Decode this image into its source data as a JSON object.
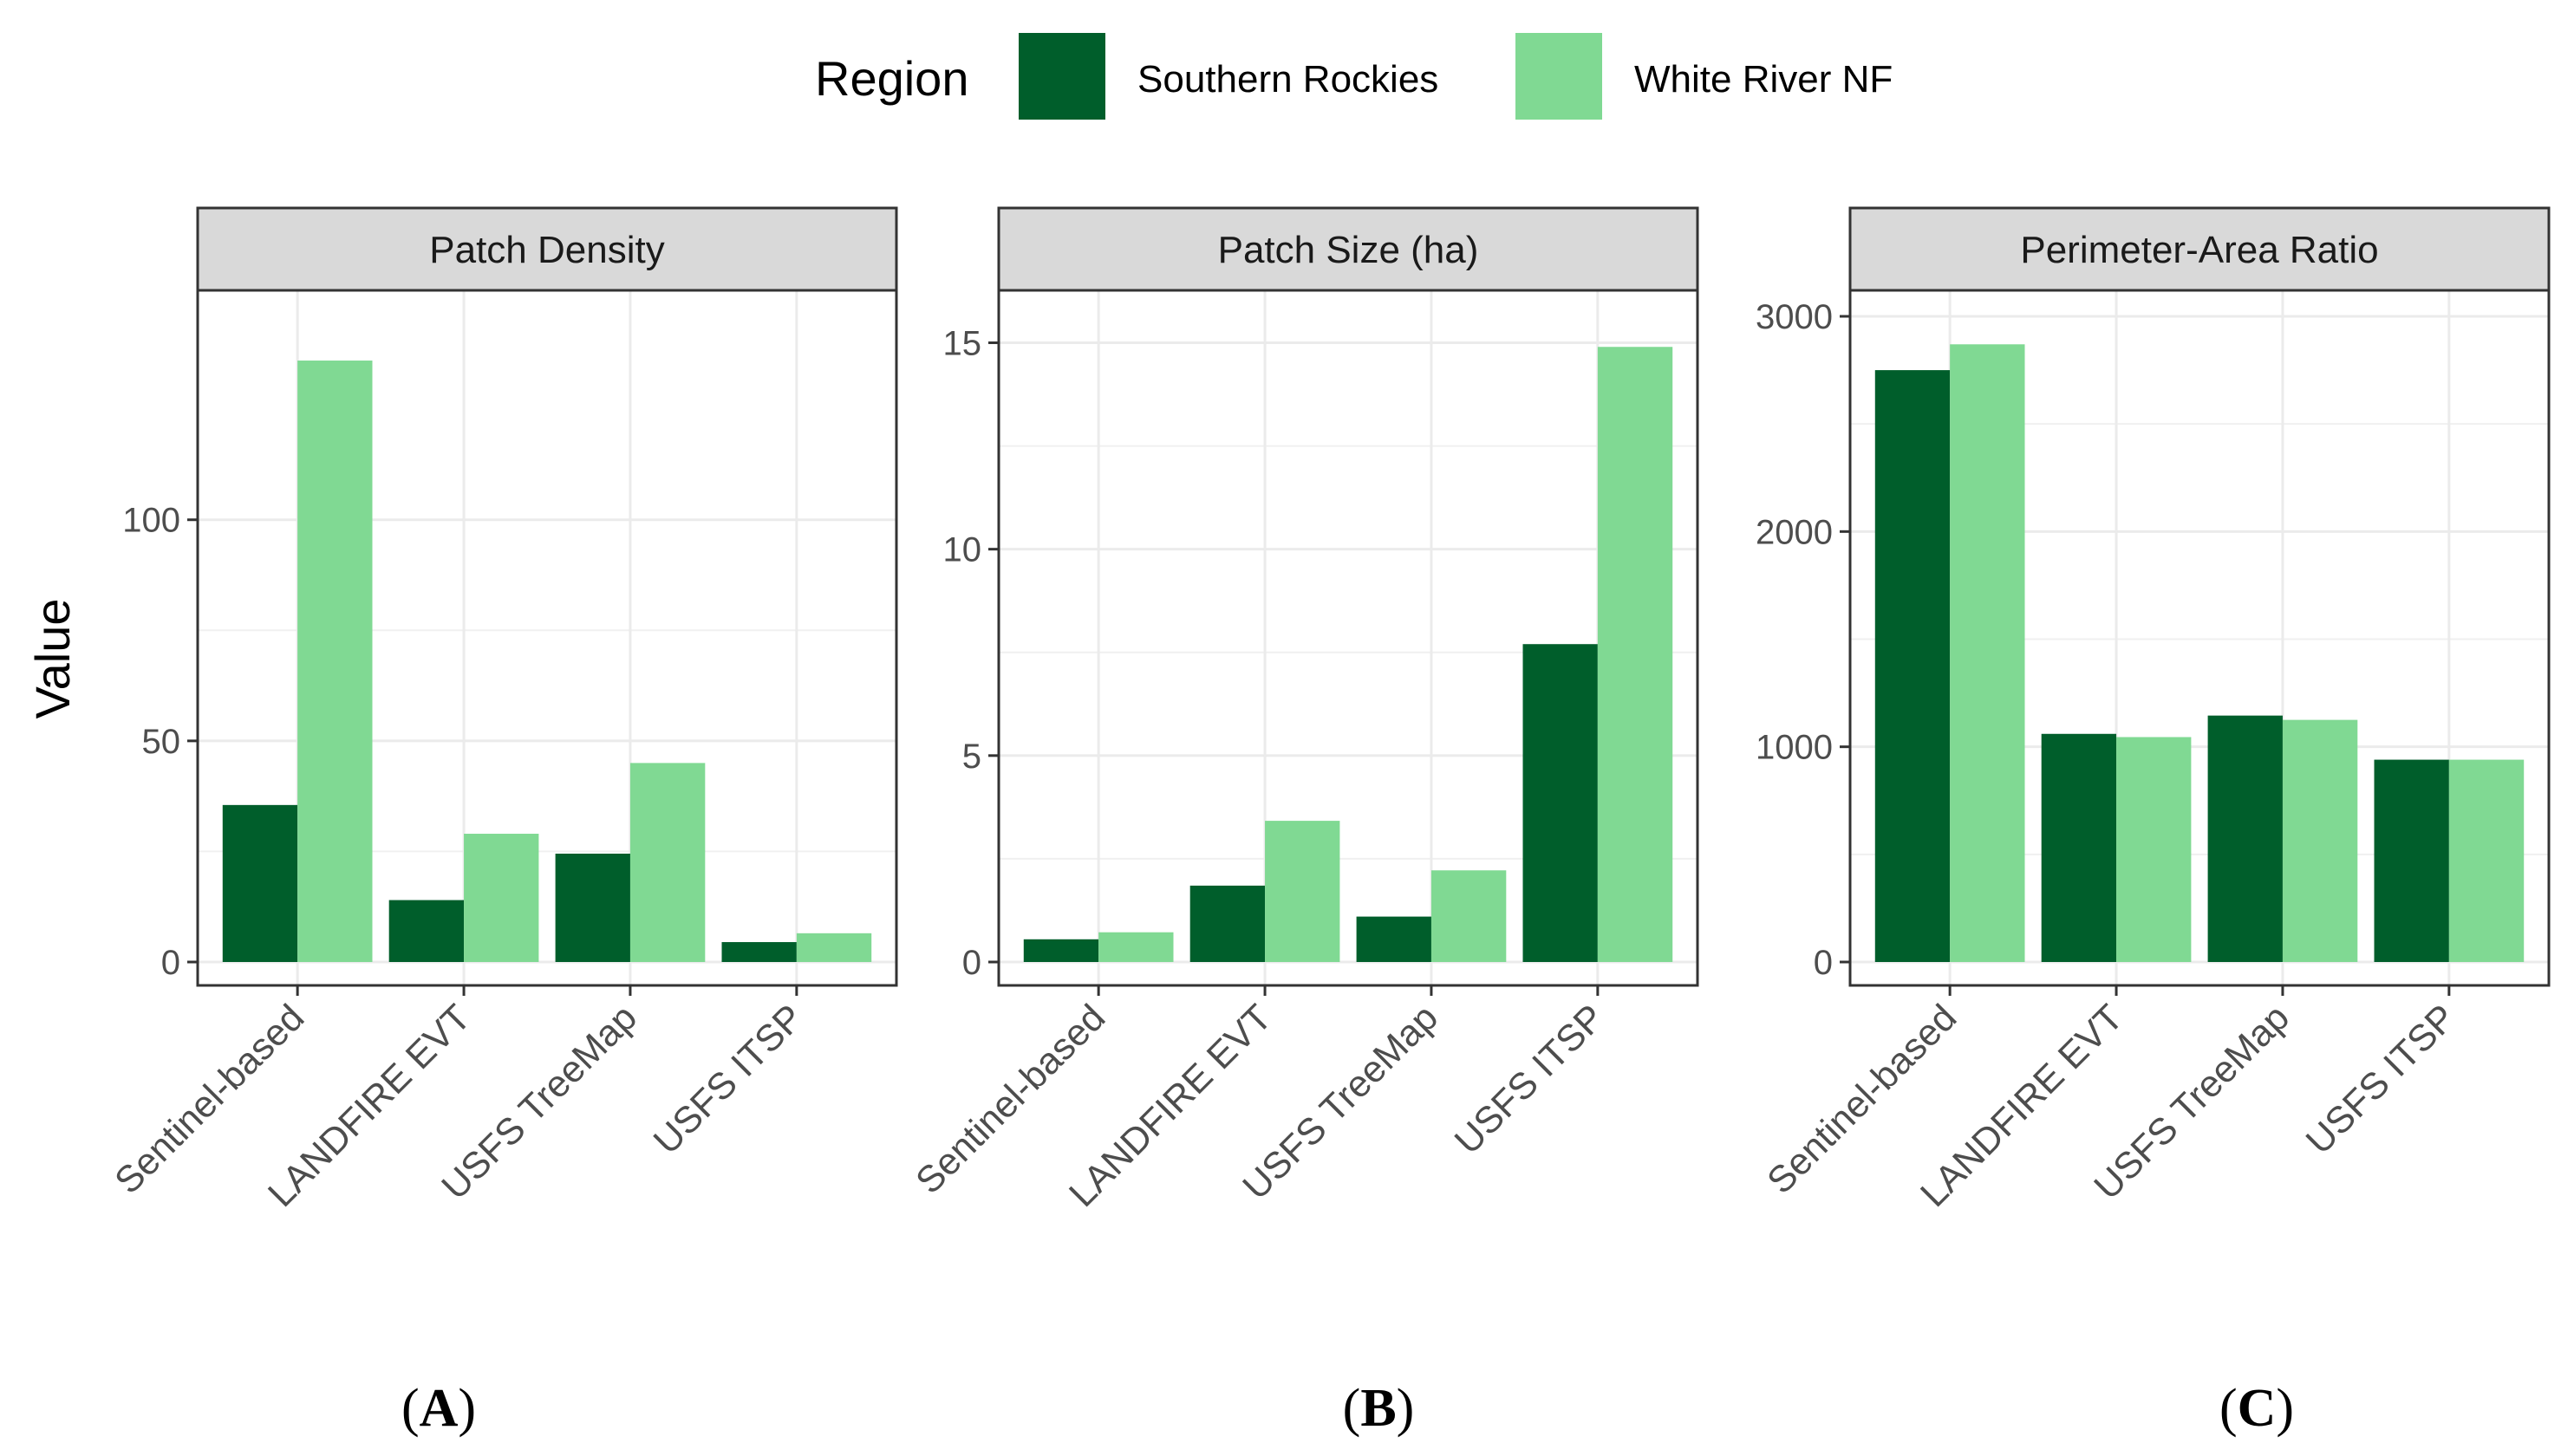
{
  "legend": {
    "title": "Region",
    "items": [
      {
        "label": "Southern Rockies",
        "color": "#005e2b"
      },
      {
        "label": "White River NF",
        "color": "#80d993"
      }
    ]
  },
  "y_axis_title": "Value",
  "chart_data": [
    {
      "type": "bar",
      "panel_label": "A",
      "title": "Patch Density",
      "categories": [
        "Sentinel-based",
        "LANDFIRE EVT",
        "USFS TreeMap",
        "USFS ITSP"
      ],
      "series": [
        {
          "name": "Southern Rockies",
          "values": [
            35.5,
            14,
            24.5,
            4.5
          ]
        },
        {
          "name": "White River NF",
          "values": [
            136,
            29,
            45,
            6.5
          ]
        }
      ],
      "ylim": [
        0,
        146
      ],
      "yticks": [
        0,
        50,
        100
      ],
      "ytick_labels": [
        "0",
        "50",
        "100"
      ],
      "ylabel": "Value",
      "xlabel": ""
    },
    {
      "type": "bar",
      "panel_label": "B",
      "title": "Patch Size (ha)",
      "categories": [
        "Sentinel-based",
        "LANDFIRE EVT",
        "USFS TreeMap",
        "USFS ITSP"
      ],
      "series": [
        {
          "name": "Southern Rockies",
          "values": [
            0.55,
            1.85,
            1.1,
            7.7
          ]
        },
        {
          "name": "White River NF",
          "values": [
            0.72,
            3.42,
            2.22,
            14.9
          ]
        }
      ],
      "ylim": [
        0,
        15.64
      ],
      "yticks": [
        0,
        5,
        10,
        15
      ],
      "ytick_labels": [
        "0",
        "5",
        "10",
        "15"
      ],
      "ylabel": "",
      "xlabel": ""
    },
    {
      "type": "bar",
      "panel_label": "C",
      "title": "Perimeter-Area Ratio",
      "categories": [
        "Sentinel-based",
        "LANDFIRE EVT",
        "USFS TreeMap",
        "USFS ITSP"
      ],
      "series": [
        {
          "name": "Southern Rockies",
          "values": [
            2750,
            1060,
            1145,
            940
          ]
        },
        {
          "name": "White River NF",
          "values": [
            2870,
            1045,
            1125,
            940
          ]
        }
      ],
      "ylim": [
        0,
        3000
      ],
      "yticks": [
        0,
        1000,
        2000,
        3000
      ],
      "ytick_labels": [
        "0",
        "1000",
        "2000",
        "3000"
      ],
      "ylabel": "",
      "xlabel": ""
    }
  ]
}
